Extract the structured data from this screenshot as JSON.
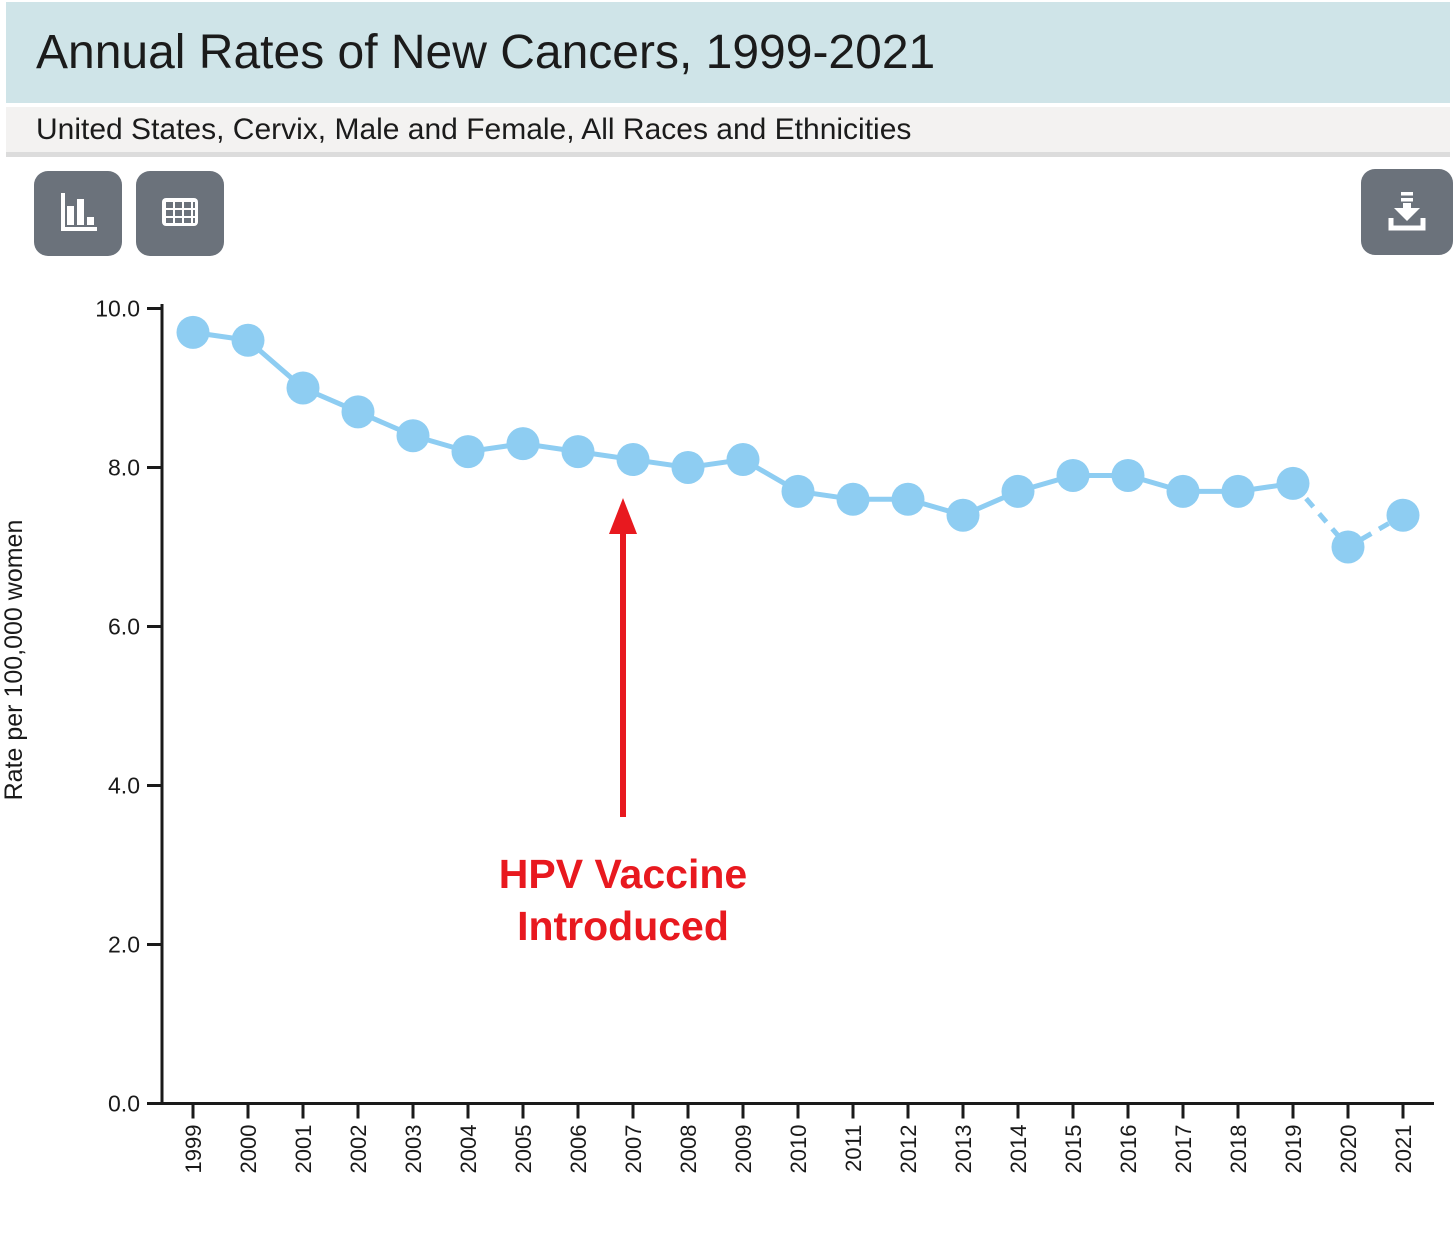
{
  "header": {
    "title": "Annual Rates of New Cancers, 1999-2021",
    "subtitle": "United States, Cervix, Male and Female, All Races and Ethnicities"
  },
  "toolbar": {
    "chart_view_icon": "bar-chart-icon",
    "table_view_icon": "table-icon",
    "download_icon": "download-icon"
  },
  "colors": {
    "title_band_bg": "#cfe4e8",
    "subtitle_band_bg": "#f3f2f1",
    "button_bg": "#6b727b",
    "series_line": "#8ecdf2",
    "axis": "#1a1a1a",
    "annotation_red": "#e8191f"
  },
  "chart_data": {
    "type": "line",
    "title": "Annual Rates of New Cancers, 1999-2021",
    "x": [
      "1999",
      "2000",
      "2001",
      "2002",
      "2003",
      "2004",
      "2005",
      "2006",
      "2007",
      "2008",
      "2009",
      "2010",
      "2011",
      "2012",
      "2013",
      "2014",
      "2015",
      "2016",
      "2017",
      "2018",
      "2019",
      "2020",
      "2021"
    ],
    "series": [
      {
        "name": "Rate per 100,000 women",
        "values": [
          9.7,
          9.6,
          9.0,
          8.7,
          8.4,
          8.2,
          8.3,
          8.2,
          8.1,
          8.0,
          8.1,
          7.7,
          7.6,
          7.6,
          7.4,
          7.7,
          7.9,
          7.9,
          7.7,
          7.7,
          7.8,
          7.0,
          7.4
        ]
      }
    ],
    "xlabel": "",
    "ylabel": "Rate per 100,000 women",
    "ylim": [
      0,
      10
    ],
    "ytick_labels": [
      "0.0",
      "2.0",
      "4.0",
      "6.0",
      "8.0",
      "10.0"
    ],
    "grid": false,
    "legend": false,
    "dashed_segment": {
      "from": "2019",
      "to": "2021"
    },
    "annotation": {
      "lines": [
        "HPV Vaccine",
        "Introduced"
      ],
      "target_year": "2007"
    }
  }
}
